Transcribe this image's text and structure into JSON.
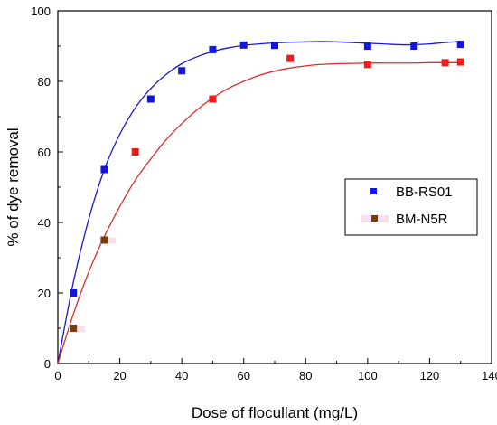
{
  "chart_data": {
    "type": "scatter",
    "title": "",
    "xlabel": "Dose of flocullant (mg/L)",
    "ylabel": "% of dye removal",
    "xlim": [
      0,
      140
    ],
    "ylim": [
      0,
      100
    ],
    "xticks": [
      0,
      20,
      40,
      60,
      80,
      100,
      120,
      140
    ],
    "yticks": [
      0,
      20,
      40,
      60,
      80,
      100
    ],
    "grid": false,
    "legend_position": "right",
    "series": [
      {
        "name": "BB-RS01",
        "marker_color": "#1515e0",
        "fit_color": "#1a1ad6",
        "x": [
          5,
          15,
          30,
          40,
          50,
          60,
          70,
          100,
          115,
          130
        ],
        "y": [
          20,
          55,
          75,
          83,
          89,
          90.3,
          90.2,
          90,
          90,
          90.5
        ],
        "fit_curve": {
          "x": [
            0,
            5,
            10,
            15,
            20,
            25,
            30,
            35,
            40,
            45,
            50,
            55,
            60,
            65,
            70,
            75,
            80,
            85,
            90,
            95,
            100,
            105,
            110,
            115,
            120,
            125,
            130
          ],
          "y": [
            0,
            23,
            41,
            55,
            65,
            72.5,
            78,
            82,
            85,
            87,
            88.5,
            89.5,
            90.2,
            90.6,
            90.9,
            91.1,
            91.2,
            91.3,
            91.2,
            91.0,
            90.8,
            90.6,
            90.4,
            90.4,
            90.6,
            91.0,
            91.3
          ]
        }
      },
      {
        "name": "BM-N5R",
        "marker_color": "#7b3a10",
        "fit_color": "#e22a2a",
        "x": [
          5,
          15,
          25,
          50,
          75,
          100,
          125,
          130
        ],
        "y": [
          10,
          35,
          60,
          75,
          86.5,
          84.8,
          85.3,
          85.5
        ],
        "point_colors": [
          "#7b3a10",
          "#7b3a10",
          "#ee1c1c",
          "#ee1c1c",
          "#ee1c1c",
          "#ee1c1c",
          "#ee1c1c",
          "#ee1c1c"
        ],
        "fit_curve": {
          "x": [
            0,
            5,
            10,
            15,
            20,
            25,
            30,
            35,
            40,
            45,
            50,
            55,
            60,
            65,
            70,
            75,
            80,
            85,
            90,
            95,
            100,
            105,
            110,
            115,
            120,
            125,
            130
          ],
          "y": [
            0,
            14,
            26,
            36,
            44.5,
            52,
            58,
            63.5,
            68,
            72,
            75.3,
            78,
            80,
            81.7,
            82.9,
            83.8,
            84.4,
            84.8,
            85.0,
            85.1,
            85.2,
            85.2,
            85.2,
            85.2,
            85.3,
            85.3,
            85.3
          ]
        }
      }
    ]
  }
}
